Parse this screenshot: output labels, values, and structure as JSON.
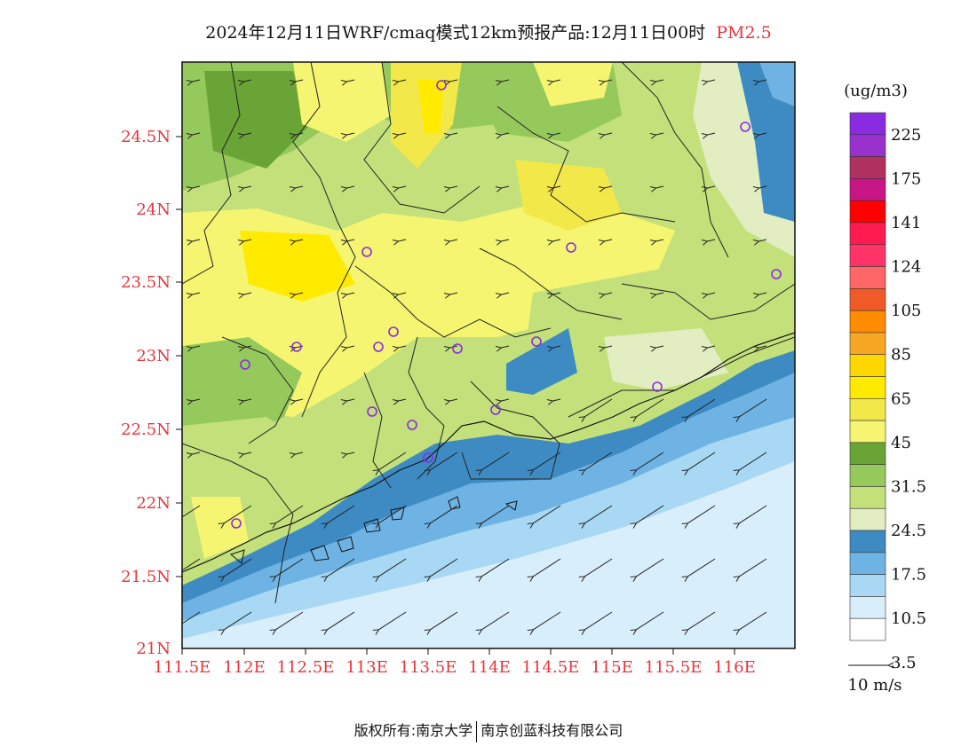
{
  "title": {
    "main": "2024年12月11日WRF/cmaq模式12km预报产品:12月11日00时",
    "pollutant": "PM2.5"
  },
  "axes": {
    "lat_labels": [
      "24.5N",
      "24N",
      "23.5N",
      "23N",
      "22.5N",
      "22N",
      "21.5N",
      "21N"
    ],
    "lon_labels": [
      "111.5E",
      "112E",
      "112.5E",
      "113E",
      "113.5E",
      "114E",
      "114.5E",
      "115E",
      "115.5E",
      "116E"
    ]
  },
  "legend": {
    "unit": "(ug/m3)",
    "labels": [
      "225",
      "175",
      "141",
      "124",
      "105",
      "85",
      "65",
      "45",
      "31.5",
      "24.5",
      "17.5",
      "10.5",
      "3.5"
    ],
    "colors": [
      "#8a2be2",
      "#9932cc",
      "#b03060",
      "#c71585",
      "#ff0000",
      "#ff1a50",
      "#ff3366",
      "#ff6666",
      "#f05a28",
      "#ff8c00",
      "#f6a623",
      "#ffd700",
      "#ffea00",
      "#f3e84a",
      "#f5f571",
      "#6aa436",
      "#96c95c",
      "#c3e07b",
      "#e2eec2",
      "#3e8bc4",
      "#6eb3e3",
      "#a8d8f4",
      "#d9eefb",
      "#ffffff"
    ]
  },
  "wind_scale": {
    "label": "10 m/s"
  },
  "stations_icon": "circle-marker-icon",
  "copyright": {
    "left": "版权所有:南京大学",
    "right": "南京创蓝科技有限公司"
  }
}
